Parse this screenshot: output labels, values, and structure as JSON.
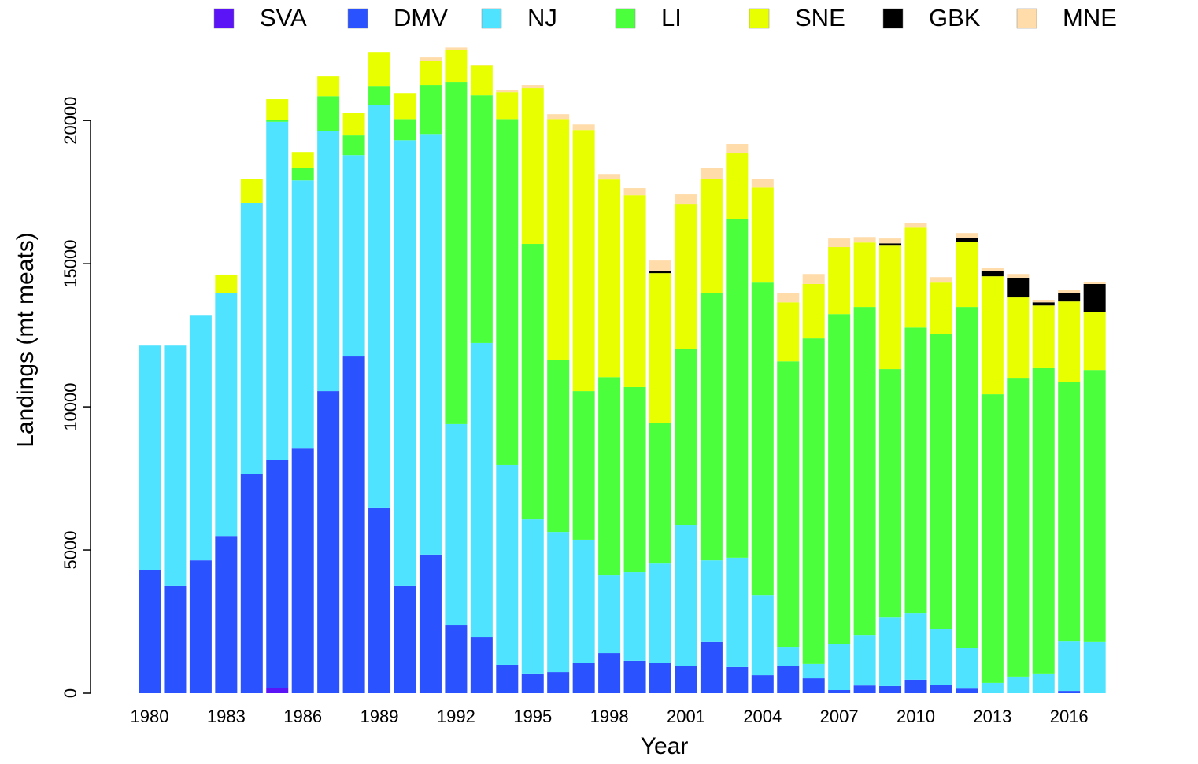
{
  "chart_data": {
    "type": "stacked_bar",
    "xlabel": "Year",
    "ylabel": "Landings (mt meats)",
    "categories": [
      "1980",
      null,
      null,
      "1983",
      null,
      null,
      "1986",
      null,
      null,
      "1989",
      null,
      null,
      "1992",
      null,
      null,
      "1995",
      null,
      null,
      "1998",
      null,
      null,
      "2001",
      null,
      null,
      "2004",
      null,
      null,
      "2007",
      null,
      null,
      "2010",
      null,
      null,
      "2013",
      null,
      null,
      "2016",
      null
    ],
    "series": [
      {
        "name": "SVA",
        "color": "#5a14f5",
        "values": [
          0,
          0,
          0,
          0,
          0,
          165,
          0,
          0,
          0,
          0,
          0,
          0,
          0,
          0,
          0,
          0,
          0,
          0,
          0,
          0,
          0,
          0,
          0,
          0,
          0,
          0,
          0,
          0,
          0,
          0,
          0,
          0,
          0,
          0,
          0,
          0,
          0,
          0
        ]
      },
      {
        "name": "DMV",
        "color": "#2a52ff",
        "values": [
          4300,
          3740,
          4640,
          5490,
          7640,
          7970,
          8540,
          10550,
          11760,
          6460,
          3740,
          4840,
          2390,
          1950,
          990,
          690,
          740,
          1070,
          1400,
          1130,
          1070,
          960,
          1790,
          910,
          630,
          960,
          520,
          110,
          270,
          250,
          470,
          300,
          160,
          0,
          0,
          0,
          80,
          0
        ]
      },
      {
        "name": "NJ",
        "color": "#4fe3ff",
        "values": [
          7840,
          8400,
          8570,
          8470,
          9480,
          11820,
          9370,
          9090,
          7030,
          14090,
          15570,
          14690,
          7010,
          10280,
          6980,
          5380,
          4890,
          4290,
          2720,
          3100,
          3460,
          4920,
          2850,
          3820,
          2800,
          660,
          500,
          1620,
          1760,
          2410,
          2330,
          1930,
          1430,
          360,
          580,
          690,
          1730,
          1790
        ]
      },
      {
        "name": "LI",
        "color": "#4cff3c",
        "values": [
          0,
          0,
          0,
          0,
          0,
          50,
          440,
          1210,
          690,
          660,
          740,
          1710,
          11950,
          8650,
          12080,
          9620,
          6020,
          5190,
          6920,
          6460,
          4920,
          6150,
          9340,
          11840,
          10910,
          9970,
          11370,
          11510,
          11460,
          8660,
          9970,
          10320,
          11900,
          10080,
          10410,
          10660,
          9070,
          9500
        ]
      },
      {
        "name": "SNE",
        "color": "#e8ff00",
        "values": [
          0,
          0,
          0,
          660,
          850,
          740,
          550,
          690,
          790,
          1180,
          910,
          850,
          1120,
          1040,
          940,
          5440,
          8400,
          9120,
          6900,
          6700,
          5220,
          5060,
          3990,
          2280,
          3320,
          2060,
          1900,
          2340,
          2250,
          4310,
          3490,
          1790,
          2280,
          4120,
          2830,
          2190,
          2800,
          2010
        ]
      },
      {
        "name": "GBK",
        "color": "#000000",
        "values": [
          0,
          0,
          0,
          0,
          0,
          0,
          0,
          0,
          0,
          0,
          0,
          0,
          0,
          0,
          0,
          0,
          0,
          0,
          0,
          0,
          80,
          0,
          0,
          0,
          0,
          0,
          0,
          0,
          0,
          80,
          0,
          0,
          140,
          190,
          690,
          110,
          300,
          990
        ]
      },
      {
        "name": "MNE",
        "color": "#ffdcaa",
        "values": [
          0,
          0,
          0,
          0,
          0,
          0,
          0,
          0,
          0,
          0,
          0,
          110,
          80,
          30,
          80,
          110,
          170,
          190,
          190,
          250,
          360,
          330,
          380,
          330,
          310,
          310,
          350,
          300,
          190,
          170,
          170,
          190,
          160,
          110,
          130,
          90,
          90,
          80
        ]
      }
    ],
    "ylim": [
      0,
      23000
    ],
    "yticks": [
      0,
      5000,
      10000,
      15000,
      20000
    ],
    "legend": "top"
  }
}
